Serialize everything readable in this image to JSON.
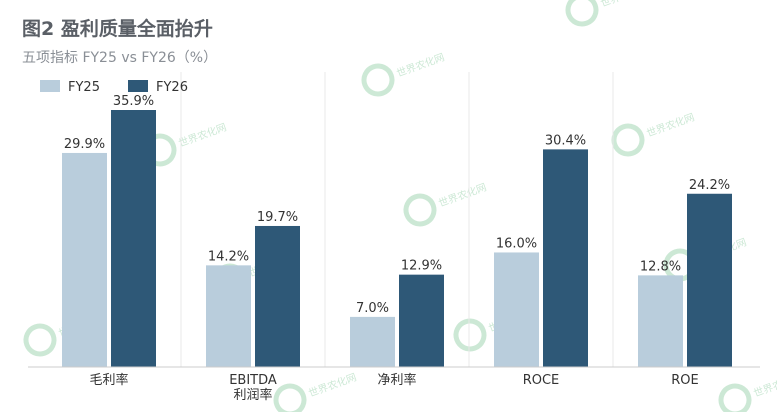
{
  "title": "图2  盈利质量全面抬升",
  "subtitle": "五项指标 FY25 vs FY26（%）",
  "watermark": "世界农化网",
  "colors": {
    "FY25": "#b9cddc",
    "FY26": "#2e5877",
    "grid": "#e8e8e8",
    "axis": "#cccccc",
    "text": "#333333"
  },
  "chart_data": {
    "type": "bar",
    "title": "图2  盈利质量全面抬升",
    "subtitle": "五项指标 FY25 vs FY26（%）",
    "categories": [
      "毛利率",
      "EBITDA\n利润率",
      "净利率",
      "ROCE",
      "ROE"
    ],
    "series": [
      {
        "name": "FY25",
        "values": [
          29.9,
          14.2,
          7.0,
          16.0,
          12.8
        ],
        "labels": [
          "29.9%",
          "14.2%",
          "7.0%",
          "16.0%",
          "12.8%"
        ]
      },
      {
        "name": "FY26",
        "values": [
          35.9,
          19.7,
          12.9,
          30.4,
          24.2
        ],
        "labels": [
          "35.9%",
          "19.7%",
          "12.9%",
          "30.4%",
          "24.2%"
        ]
      }
    ],
    "xlabel": "",
    "ylabel": "",
    "ylim": [
      0,
      40
    ],
    "grid": "vertical separators between categories",
    "legend": "top-left"
  }
}
